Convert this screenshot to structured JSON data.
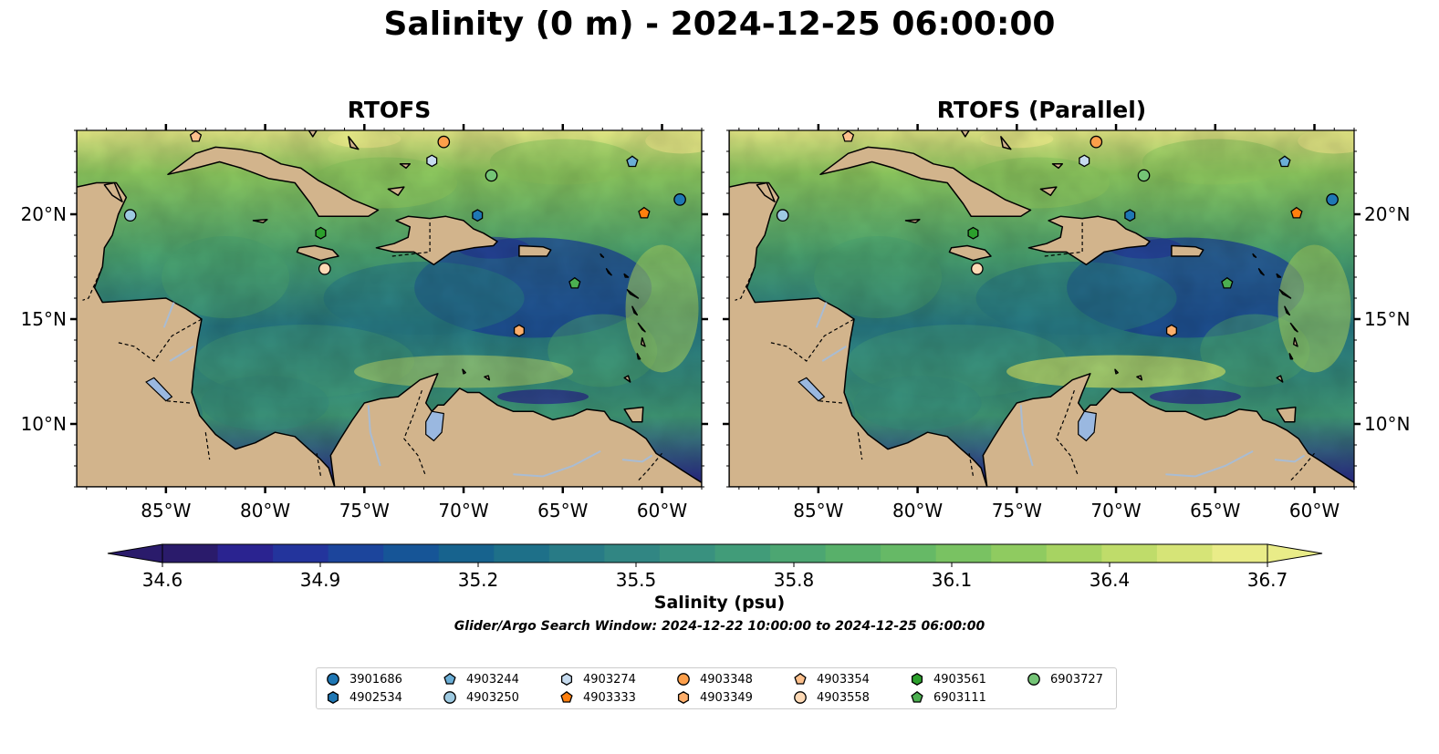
{
  "title": "Salinity (0 m) - 2024-12-25 06:00:00",
  "panels": [
    {
      "title": "RTOFS"
    },
    {
      "title": "RTOFS (Parallel)"
    }
  ],
  "map": {
    "lon_range": [
      -89.5,
      -58.0
    ],
    "lat_range": [
      7.0,
      24.0
    ],
    "lon_ticks": [
      -85,
      -80,
      -75,
      -70,
      -65,
      -60
    ],
    "lon_tick_labels": [
      "85°W",
      "80°W",
      "75°W",
      "70°W",
      "65°W",
      "60°W"
    ],
    "lat_ticks": [
      10,
      15,
      20
    ],
    "lat_tick_labels": [
      "10°N",
      "15°N",
      "20°N"
    ],
    "land_color": "#d2b48c",
    "lake_color": "#9ab8e0"
  },
  "colorbar": {
    "label": "Salinity (psu)",
    "min": 34.6,
    "max": 36.7,
    "extend": "both",
    "ticks": [
      "34.6",
      "34.9",
      "35.2",
      "35.5",
      "35.8",
      "36.1",
      "36.4",
      "36.7"
    ],
    "colors": [
      "#2a1b6b",
      "#2a2390",
      "#23349c",
      "#1c459c",
      "#165597",
      "#17638e",
      "#1e7089",
      "#287b86",
      "#318683",
      "#39917f",
      "#419c79",
      "#4ca672",
      "#58b06a",
      "#66b966",
      "#79c262",
      "#8fcb60",
      "#a7d362",
      "#bfdc6a",
      "#d6e477",
      "#e9ec88"
    ]
  },
  "search_window": "Glider/Argo Search Window: 2024-12-22 10:00:00 to 2024-12-25 06:00:00",
  "floats": [
    {
      "id": "3901686",
      "lon": -59.1,
      "lat": 20.7,
      "marker": "circle",
      "color": "#1f77b4"
    },
    {
      "id": "4902534",
      "lon": -69.3,
      "lat": 19.95,
      "marker": "hexagon",
      "color": "#1f77b4"
    },
    {
      "id": "4903244",
      "lon": -61.5,
      "lat": 22.5,
      "marker": "pentagon",
      "color": "#6baed6"
    },
    {
      "id": "4903250",
      "lon": -86.8,
      "lat": 19.95,
      "marker": "circle",
      "color": "#9ecae1"
    },
    {
      "id": "4903274",
      "lon": -71.6,
      "lat": 22.55,
      "marker": "hexagon",
      "color": "#c6dbef"
    },
    {
      "id": "4903333",
      "lon": -60.9,
      "lat": 20.05,
      "marker": "pentagon",
      "color": "#ff7f0e"
    },
    {
      "id": "4903348",
      "lon": -71.0,
      "lat": 23.45,
      "marker": "circle",
      "color": "#fd9f4a"
    },
    {
      "id": "4903349",
      "lon": -67.2,
      "lat": 14.45,
      "marker": "hexagon",
      "color": "#fdae6b"
    },
    {
      "id": "4903354",
      "lon": -83.5,
      "lat": 23.7,
      "marker": "pentagon",
      "color": "#fdc08c"
    },
    {
      "id": "4903558",
      "lon": -77.0,
      "lat": 17.4,
      "marker": "circle",
      "color": "#fdd9b5"
    },
    {
      "id": "4903561",
      "lon": -77.2,
      "lat": 19.1,
      "marker": "hexagon",
      "color": "#2ca02c"
    },
    {
      "id": "6903111",
      "lon": -64.4,
      "lat": 16.7,
      "marker": "pentagon",
      "color": "#4caf50"
    },
    {
      "id": "6903727",
      "lon": -68.6,
      "lat": 21.85,
      "marker": "circle",
      "color": "#74c476"
    }
  ]
}
